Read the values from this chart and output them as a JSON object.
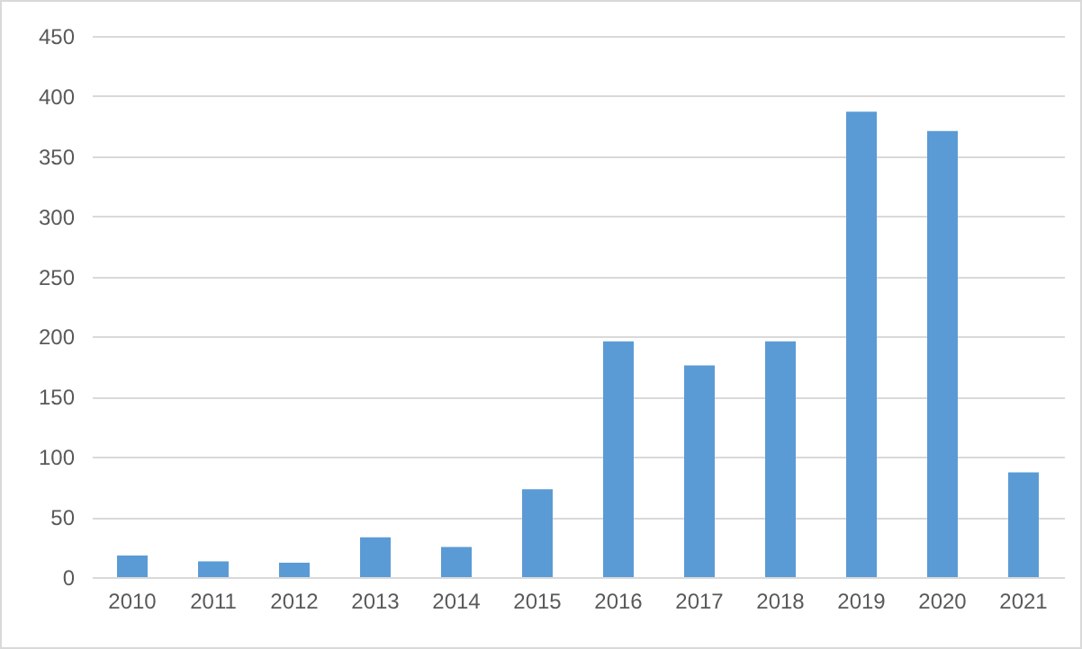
{
  "chart_data": {
    "type": "bar",
    "categories": [
      "2010",
      "2011",
      "2012",
      "2013",
      "2014",
      "2015",
      "2016",
      "2017",
      "2018",
      "2019",
      "2020",
      "2021"
    ],
    "values": [
      18,
      13,
      12,
      33,
      25,
      73,
      196,
      176,
      196,
      387,
      371,
      87
    ],
    "color": "#5b9bd5",
    "ylim": [
      0,
      450
    ],
    "yticks": [
      0,
      50,
      100,
      150,
      200,
      250,
      300,
      350,
      400,
      450
    ],
    "grid": "y"
  }
}
